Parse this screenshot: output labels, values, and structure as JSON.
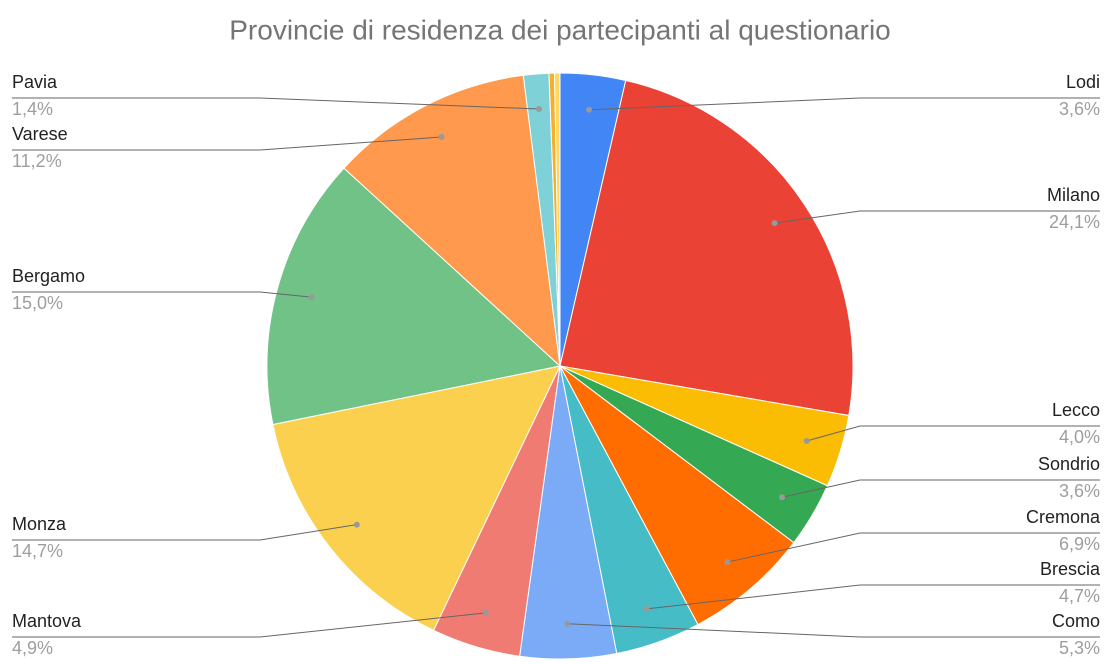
{
  "chart_data": {
    "type": "pie",
    "title": "Provincie di residenza dei partecipanti al questionario",
    "categories": [
      "Lodi",
      "Milano",
      "Lecco",
      "Sondrio",
      "Cremona",
      "Brescia",
      "Como",
      "Mantova",
      "Monza",
      "Bergamo",
      "Varese",
      "Pavia",
      null,
      null
    ],
    "values": [
      3.6,
      24.1,
      4.0,
      3.6,
      6.9,
      4.7,
      5.3,
      4.9,
      14.7,
      15.0,
      11.2,
      1.4,
      0.3,
      0.3
    ],
    "value_labels": [
      "3,6%",
      "24,1%",
      "4,0%",
      "3,6%",
      "6,9%",
      "4,7%",
      "5,3%",
      "4,9%",
      "14,7%",
      "15,0%",
      "11,2%",
      "1,4%",
      null,
      null
    ],
    "colors": [
      "#4285f4",
      "#ea4335",
      "#fbbc04",
      "#34a853",
      "#ff6d01",
      "#46bdc6",
      "#7baaf7",
      "#f07b72",
      "#fcd04f",
      "#71c287",
      "#ff994d",
      "#7ed1d7",
      "#f6ae2d",
      "#ffd75e"
    ]
  }
}
